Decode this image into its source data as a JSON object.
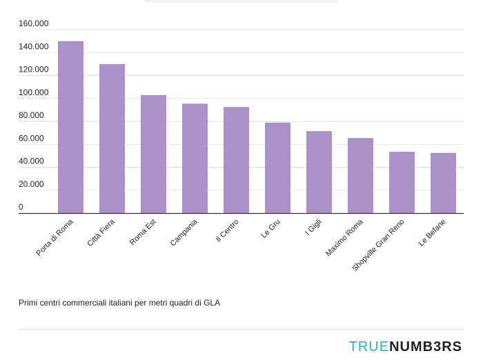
{
  "chart_data": {
    "type": "bar",
    "categories": [
      "Porta di Roma",
      "Città Fiera",
      "Roma Est",
      "Campania",
      "Il Centro",
      "Le Gru",
      "I Gigli",
      "Maximo Roma",
      "Shopville Gran Reno",
      "Le Befane"
    ],
    "values": [
      150000,
      130000,
      103000,
      95500,
      92500,
      79000,
      71500,
      65500,
      53500,
      52500
    ],
    "yticks": [
      "0",
      "20.000",
      "40.000",
      "60.000",
      "80.000",
      "100.000",
      "120.000",
      "140.000",
      "160.000"
    ],
    "ylim": [
      0,
      160000
    ],
    "grid": true,
    "bar_color": "#aa92c9"
  },
  "caption": "Primi centri commerciali italiani per metri quadri di GLA",
  "brand": {
    "part1": "TRUE",
    "part2": "NUMB3RS"
  }
}
